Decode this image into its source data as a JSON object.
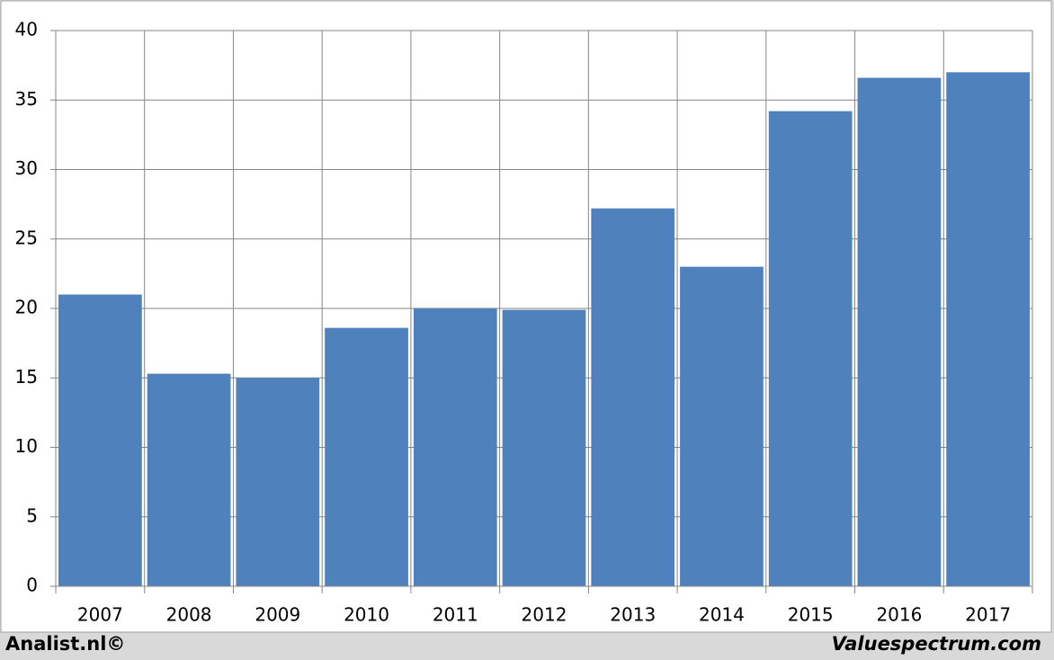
{
  "chart_data": {
    "type": "bar",
    "categories": [
      "2007",
      "2008",
      "2009",
      "2010",
      "2011",
      "2012",
      "2013",
      "2014",
      "2015",
      "2016",
      "2017"
    ],
    "values": [
      21.0,
      15.3,
      15.0,
      18.6,
      20.0,
      19.9,
      27.2,
      23.0,
      34.2,
      36.6,
      37.0
    ],
    "color": "#4f81bd",
    "ylim": [
      0,
      40
    ],
    "yticks": [
      0,
      5,
      10,
      15,
      20,
      25,
      30,
      35,
      40
    ],
    "grid": true
  },
  "footer": {
    "left": "Analist.nl©",
    "right": "Valuespectrum.com"
  }
}
